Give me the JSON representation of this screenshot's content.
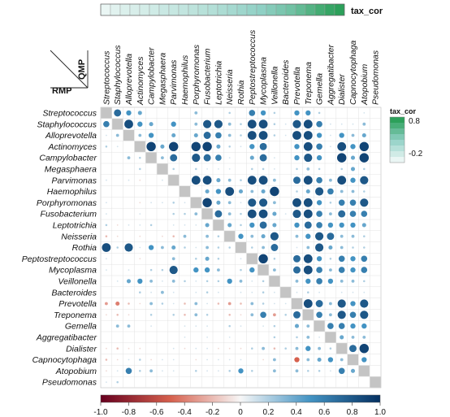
{
  "chart_data": {
    "type": "heatmap",
    "taxa": [
      "Streptococcus",
      "Staphylococcus",
      "Alloprevotella",
      "Actinomyces",
      "Campylobacter",
      "Megasphaera",
      "Parvimonas",
      "Haemophilus",
      "Porphyromonas",
      "Fusobacterium",
      "Leptotrichia",
      "Neisseria",
      "Rothia",
      "Peptostreptococcus",
      "Mycoplasma",
      "Veillonella",
      "Bacteroides",
      "Prevotella",
      "Treponema",
      "Gemella",
      "Aggregatibacter",
      "Dialister",
      "Capnocytophaga",
      "Atopobium",
      "Pseudomonas"
    ],
    "upper_triangle_label": "QMP",
    "lower_triangle_label": "RMP",
    "top_bar_label": "tax_cor",
    "side_legend": {
      "title": "tax_cor",
      "ticks": [
        "0.8",
        "-0.2"
      ],
      "range": [
        -0.2,
        0.8
      ]
    },
    "colorbar": {
      "ticks": [
        "-1.0",
        "-0.8",
        "-0.6",
        "-0.4",
        "-0.2",
        "0",
        "0.2",
        "0.4",
        "0.6",
        "0.8",
        "1.0"
      ],
      "range": [
        -1.0,
        1.0
      ]
    },
    "top_bar_values": [
      -0.2,
      -0.15,
      -0.12,
      -0.1,
      -0.08,
      -0.05,
      -0.02,
      0.0,
      0.02,
      0.05,
      0.08,
      0.1,
      0.14,
      0.18,
      0.22,
      0.26,
      0.3,
      0.35,
      0.4,
      0.45,
      0.52,
      0.6,
      0.68,
      0.75,
      0.8
    ],
    "diagonal_color": "#c4c4c4",
    "corr": [
      [
        1,
        0.7,
        0.5,
        0.4,
        0,
        0,
        0,
        0,
        0.3,
        0,
        0,
        0.2,
        0,
        0.6,
        0.5,
        0.2,
        0,
        0.5,
        0.5,
        0.2,
        0,
        0,
        0,
        0.1,
        0
      ],
      [
        0.6,
        1,
        0.85,
        0.5,
        0.4,
        0,
        0.5,
        0,
        0.3,
        0.8,
        0.8,
        0.3,
        0.2,
        0.85,
        0.85,
        0.2,
        0.1,
        0.8,
        0.85,
        0.6,
        0.1,
        0.1,
        0.1,
        0.3,
        0
      ],
      [
        0.1,
        0.3,
        1,
        0.3,
        0.5,
        0,
        0.4,
        0,
        0.4,
        0.7,
        0.6,
        0.3,
        0.2,
        0.85,
        0.85,
        0.2,
        0.1,
        0.85,
        0.85,
        0.5,
        0.1,
        0.5,
        0.3,
        0.4,
        0
      ],
      [
        0.2,
        0.1,
        0.05,
        1,
        0.9,
        0.4,
        0.9,
        0,
        0.9,
        0.9,
        0.4,
        0.2,
        0.1,
        0.5,
        0.7,
        0,
        0,
        0.5,
        0.85,
        0.6,
        0.1,
        0.85,
        0.5,
        0.9,
        0
      ],
      [
        0.05,
        0,
        0.3,
        0.2,
        1,
        0.3,
        0.7,
        0,
        0.8,
        0.7,
        0.6,
        0.1,
        0,
        0.4,
        0.7,
        0.1,
        0,
        0.5,
        0.8,
        0.5,
        0,
        0.9,
        0.4,
        0.9,
        0
      ],
      [
        0,
        0,
        0,
        0.2,
        0,
        1,
        0.2,
        0,
        0.2,
        0.1,
        0.1,
        0.1,
        0,
        0.2,
        0.2,
        0.1,
        0,
        0.2,
        0.3,
        0.2,
        0,
        0.2,
        0.4,
        0.2,
        0
      ],
      [
        0.1,
        0,
        0.1,
        -0.1,
        0,
        0.1,
        1,
        0,
        0.85,
        0.85,
        0.4,
        0.3,
        0.2,
        0.85,
        0.85,
        0.3,
        0,
        0.7,
        0.85,
        0.6,
        0.3,
        0.85,
        0.5,
        0.8,
        0
      ],
      [
        0,
        0,
        0,
        0,
        0,
        0,
        0.05,
        1,
        0,
        0.4,
        0.5,
        0.85,
        0.4,
        0.3,
        0.4,
        0.9,
        0,
        0.2,
        0.4,
        0.8,
        0.6,
        0.3,
        0.3,
        0.2,
        0
      ],
      [
        0.1,
        0,
        0,
        -0.1,
        0.1,
        0.1,
        0.2,
        0.1,
        1,
        0.9,
        0.4,
        0.3,
        0.1,
        0.8,
        0.8,
        0.3,
        0,
        0.85,
        0.85,
        0.5,
        0.2,
        0.6,
        0.6,
        0.8,
        0
      ],
      [
        0.1,
        0,
        0,
        0.1,
        0,
        0,
        0.2,
        0.2,
        0.3,
        1,
        0.7,
        0.3,
        0.2,
        0.85,
        0.85,
        0.4,
        0.1,
        0.8,
        0.85,
        0.6,
        0.3,
        0.7,
        0.6,
        0.6,
        0
      ],
      [
        0.2,
        -0.1,
        0.1,
        0.1,
        0.2,
        0,
        0.1,
        0.1,
        0.1,
        0.4,
        1,
        0.4,
        0.2,
        0.5,
        0.7,
        0.4,
        0,
        0.5,
        0.7,
        0.6,
        0.5,
        0.5,
        0.5,
        0.4,
        0
      ],
      [
        -0.2,
        -0.1,
        0,
        -0.1,
        0,
        -0.1,
        -0.2,
        0.3,
        0,
        0.3,
        0.2,
        1,
        0.5,
        0.3,
        0.4,
        0.8,
        0,
        0.3,
        0.5,
        0.8,
        0.7,
        0.3,
        0.3,
        0.2,
        0
      ],
      [
        0.85,
        0.2,
        0.8,
        0.1,
        0.5,
        0.3,
        0.4,
        0.2,
        0.1,
        0.3,
        0.2,
        0.2,
        1,
        0.2,
        0.3,
        0.7,
        0,
        0.1,
        0.3,
        0.8,
        0.4,
        0.3,
        0.2,
        0.2,
        0
      ],
      [
        0.1,
        0,
        0,
        -0.1,
        0,
        0,
        0.3,
        0,
        0.2,
        0.4,
        0.2,
        0,
        0.1,
        1,
        0.9,
        0.2,
        0,
        0.7,
        0.85,
        0.5,
        0.2,
        0.6,
        0.5,
        0.6,
        0
      ],
      [
        0.1,
        0,
        0.1,
        0.05,
        0.2,
        0.2,
        0.8,
        0,
        0.5,
        0.5,
        0.3,
        0,
        0.2,
        0.5,
        1,
        0.3,
        0,
        0.7,
        0.85,
        0.6,
        0.3,
        0.6,
        0.5,
        0.6,
        0
      ],
      [
        0,
        0.1,
        0.4,
        0.5,
        0.3,
        0.1,
        0.3,
        0.2,
        0.1,
        0.2,
        0.2,
        0.5,
        0.3,
        0.1,
        0.2,
        1,
        0,
        0.3,
        0.5,
        0.6,
        0.5,
        0.3,
        0.3,
        0.2,
        0
      ],
      [
        0,
        0,
        0,
        0.2,
        0.1,
        0.3,
        0.1,
        0,
        0.1,
        0.2,
        0.1,
        0,
        0.1,
        0.1,
        0.2,
        0.1,
        1,
        0.1,
        0.2,
        0.1,
        0,
        0.1,
        0.1,
        0.1,
        0
      ],
      [
        -0.3,
        -0.4,
        -0.2,
        -0.1,
        0.3,
        0.2,
        0.1,
        -0.2,
        0.3,
        0.1,
        -0.2,
        -0.3,
        -0.2,
        0.3,
        0.2,
        0.1,
        0.1,
        1,
        0.85,
        0.7,
        0.3,
        0.8,
        0.5,
        0.8,
        0
      ],
      [
        -0.1,
        -0.2,
        -0.1,
        0.05,
        0.2,
        0,
        0.2,
        -0.2,
        0.3,
        0.2,
        0,
        -0.2,
        -0.1,
        0.3,
        0.6,
        -0.3,
        0.2,
        0.7,
        1,
        0.6,
        0.3,
        0.8,
        0.6,
        0.8,
        0
      ],
      [
        0.05,
        0.3,
        0.3,
        0,
        0.1,
        0,
        0,
        0.1,
        0.1,
        0.1,
        0,
        0.2,
        0.1,
        0,
        0.1,
        0.2,
        0,
        0.4,
        0.3,
        1,
        0.6,
        0.6,
        0.5,
        0.5,
        0
      ],
      [
        0,
        0,
        0,
        0,
        0,
        0,
        0,
        0.1,
        0,
        0.1,
        0,
        0.1,
        0,
        0,
        0,
        0.2,
        0,
        0.2,
        0.3,
        0.1,
        1,
        0.4,
        0.3,
        0.3,
        0
      ],
      [
        -0.1,
        -0.2,
        -0.1,
        -0.1,
        0.05,
        0,
        0.1,
        -0.1,
        0.1,
        0.1,
        -0.1,
        -0.1,
        -0.1,
        0.2,
        0.3,
        -0.2,
        0.2,
        0.3,
        0.5,
        0.3,
        0.2,
        1,
        0.7,
        0.9,
        0
      ],
      [
        -0.2,
        -0.1,
        0.1,
        0.2,
        -0.1,
        0.1,
        0.1,
        0,
        -0.1,
        0.1,
        0.1,
        0.1,
        0.1,
        0,
        -0.1,
        0.3,
        0,
        -0.5,
        0.3,
        0.4,
        0.5,
        0.3,
        1,
        0.5,
        0
      ],
      [
        -0.1,
        0.1,
        0.6,
        0.2,
        0.3,
        0.1,
        0.1,
        0,
        0.2,
        0.1,
        0.1,
        0.2,
        0.5,
        0.2,
        0,
        0.3,
        0,
        0.3,
        0.2,
        0.2,
        0.1,
        0.6,
        0.4,
        1,
        0
      ],
      [
        0.1,
        0.2,
        0,
        0,
        0,
        0,
        0,
        0,
        0,
        0,
        0,
        0,
        0,
        0,
        0,
        0,
        0,
        0,
        0,
        0,
        0,
        0,
        0,
        0,
        1
      ]
    ]
  }
}
